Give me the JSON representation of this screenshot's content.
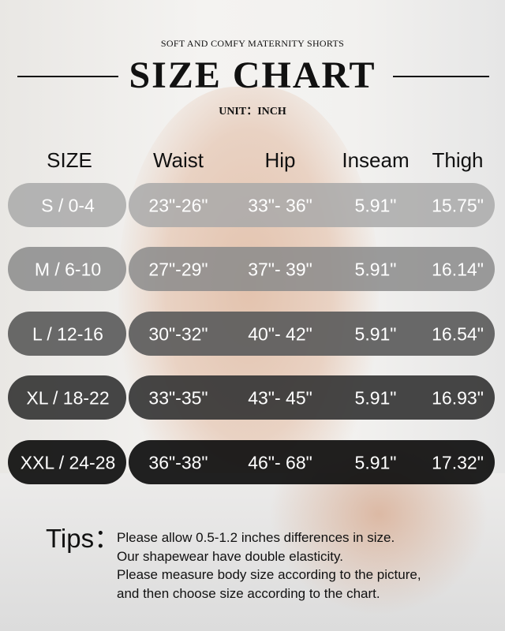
{
  "subtitle": "SOFT AND COMFY MATERNITY SHORTS",
  "title": "SIZE CHART",
  "unit": "UNIT：INCH",
  "headers": [
    "SIZE",
    "Waist",
    "Hip",
    "Inseam",
    "Thigh"
  ],
  "rows": [
    {
      "size": "S / 0-4",
      "waist": "23\"-26\"",
      "hip": "33\"- 36\"",
      "inseam": "5.91\"",
      "thigh": "15.75\"",
      "color": "#a9a9a9"
    },
    {
      "size": "M / 6-10",
      "waist": "27\"-29\"",
      "hip": "37\"- 39\"",
      "inseam": "5.91\"",
      "thigh": "16.14\"",
      "color": "#8b8b8b"
    },
    {
      "size": "L / 12-16",
      "waist": "30\"-32\"",
      "hip": "40\"- 42\"",
      "inseam": "5.91\"",
      "thigh": "16.54\"",
      "color": "#5c5c5c"
    },
    {
      "size": "XL / 18-22",
      "waist": "33\"-35\"",
      "hip": "43\"- 45\"",
      "inseam": "5.91\"",
      "thigh": "16.93\"",
      "color": "#363636"
    },
    {
      "size": "XXL / 24-28",
      "waist": "36\"-38\"",
      "hip": "46\"- 68\"",
      "inseam": "5.91\"",
      "thigh": "17.32\"",
      "color": "#0e0e0e"
    }
  ],
  "tips": {
    "heading": "Tips：",
    "lines": [
      "Please allow 0.5-1.2 inches differences in size.",
      "Our shapewear have double elasticity.",
      "Please measure body size according to the picture,",
      "and then choose size according to the chart."
    ]
  }
}
